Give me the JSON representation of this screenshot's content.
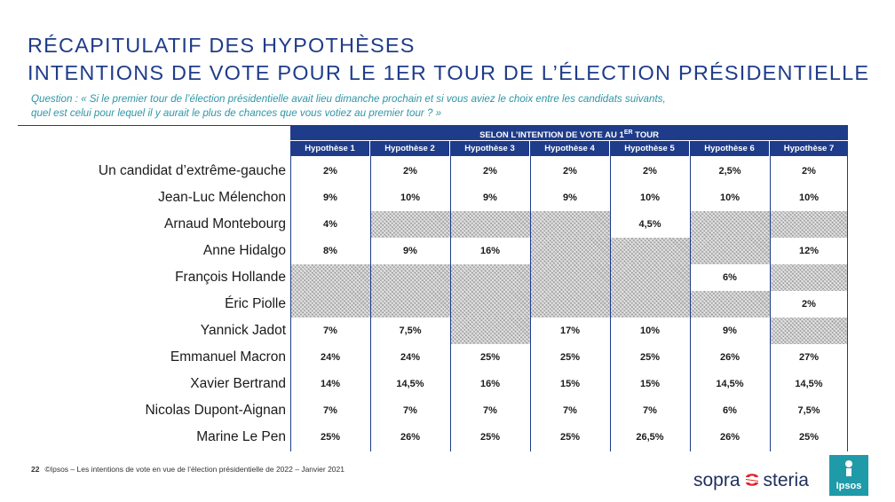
{
  "title": {
    "line1": "RÉCAPITULATIF DES HYPOTHÈSES",
    "line2": "INTENTIONS DE VOTE POUR LE 1ER TOUR DE L’ÉLECTION PRÉSIDENTIELLE"
  },
  "question": {
    "line1": "Question : « Si le premier tour de l’élection présidentielle avait lieu dimanche prochain et si vous aviez le choix entre les candidats suivants,",
    "line2": "quel est celui pour lequel il y aurait le plus de chances que vous votiez au premier tour ? »"
  },
  "table": {
    "span_header": "SELON L’INTENTION DE VOTE AU 1",
    "span_header_sup": "ER",
    "span_header_end": " TOUR",
    "columns": [
      "Hypothèse 1",
      "Hypothèse 2",
      "Hypothèse 3",
      "Hypothèse 4",
      "Hypothèse 5",
      "Hypothèse 6",
      "Hypothèse 7"
    ],
    "rows": [
      {
        "label": "Un candidat d’extrême-gauche",
        "values": [
          "2%",
          "2%",
          "2%",
          "2%",
          "2%",
          "2,5%",
          "2%"
        ]
      },
      {
        "label": "Jean-Luc Mélenchon",
        "values": [
          "9%",
          "10%",
          "9%",
          "9%",
          "10%",
          "10%",
          "10%"
        ]
      },
      {
        "label": "Arnaud Montebourg",
        "values": [
          "4%",
          null,
          null,
          null,
          "4,5%",
          null,
          null
        ]
      },
      {
        "label": "Anne Hidalgo",
        "values": [
          "8%",
          "9%",
          "16%",
          null,
          null,
          null,
          "12%"
        ]
      },
      {
        "label": "François Hollande",
        "values": [
          null,
          null,
          null,
          null,
          null,
          "6%",
          null
        ]
      },
      {
        "label": "Éric Piolle",
        "values": [
          null,
          null,
          null,
          null,
          null,
          null,
          "2%"
        ]
      },
      {
        "label": "Yannick Jadot",
        "values": [
          "7%",
          "7,5%",
          null,
          "17%",
          "10%",
          "9%",
          null
        ]
      },
      {
        "label": "Emmanuel Macron",
        "values": [
          "24%",
          "24%",
          "25%",
          "25%",
          "25%",
          "26%",
          "27%"
        ]
      },
      {
        "label": "Xavier Bertrand",
        "values": [
          "14%",
          "14,5%",
          "16%",
          "15%",
          "15%",
          "14,5%",
          "14,5%"
        ]
      },
      {
        "label": "Nicolas Dupont-Aignan",
        "values": [
          "7%",
          "7%",
          "7%",
          "7%",
          "7%",
          "6%",
          "7,5%"
        ]
      },
      {
        "label": "Marine Le Pen",
        "values": [
          "25%",
          "26%",
          "25%",
          "25%",
          "26,5%",
          "26%",
          "25%"
        ]
      }
    ]
  },
  "footer": {
    "page_number": "22",
    "text": "©Ipsos – Les intentions de vote en vue de l’élection présidentielle de 2022 – Janvier 2021"
  },
  "logos": {
    "sopra_left": "sopra",
    "sopra_right": "steria",
    "ipsos": "Ipsos"
  },
  "colors": {
    "title": "#1f3c8a",
    "question": "#2f96a6",
    "header_bg": "#1f3c8a",
    "ipsos": "#1f9aa8",
    "sopra_accent": "#e4252b"
  }
}
